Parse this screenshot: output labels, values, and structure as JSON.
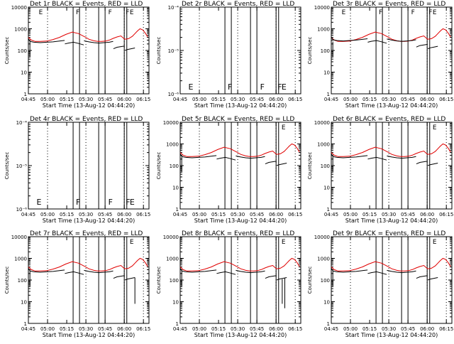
{
  "figure": {
    "rows": 3,
    "cols": 3,
    "colors": {
      "events": "#000000",
      "lld": "#e00000",
      "background": "#ffffff",
      "axis": "#000000"
    }
  },
  "chart_data": [
    {
      "type": "line",
      "title": "Det 1r BLACK = Events, RED = LLD",
      "xlabel": "Start Time (13-Aug-12 04:44:20)",
      "ylabel": "Counts/sec",
      "scale": "log",
      "ylim": [
        1,
        10000
      ],
      "yticks": [
        {
          "v": 1,
          "label": "1"
        },
        {
          "v": 10,
          "label": "10"
        },
        {
          "v": 100,
          "label": "100"
        },
        {
          "v": 1000,
          "label": "1000"
        },
        {
          "v": 10000,
          "label": "10000"
        }
      ],
      "xticks": [
        "04:45",
        "05:00",
        "05:15",
        "05:30",
        "05:45",
        "06:00",
        "06:15"
      ],
      "flags": [
        {
          "t": 8.2,
          "label": "E"
        },
        {
          "t": 37.3,
          "label": "F"
        },
        {
          "t": 62.6,
          "label": "F"
        },
        {
          "t": 76.3,
          "label": "F"
        },
        {
          "t": 79.4,
          "label": "E"
        }
      ],
      "hasData": true,
      "variant": "a"
    },
    {
      "type": "line",
      "title": "Det 2r BLACK = Events, RED = LLD",
      "xlabel": "Start Time (13-Aug-12 04:44:20)",
      "ylabel": "Counts/sec",
      "scale": "log",
      "ylim": [
        1e-06,
        0.0001
      ],
      "yticks": [
        {
          "v": 1e-06,
          "label": "10⁻⁶"
        },
        {
          "v": 1e-05,
          "label": "10⁻⁵"
        },
        {
          "v": 0.0001,
          "label": "10⁻⁴"
        }
      ],
      "xticks": [
        "04:45",
        "05:00",
        "05:15",
        "05:30",
        "05:45",
        "06:00",
        "06:15"
      ],
      "flags": [
        {
          "t": 6.5,
          "label": "E"
        },
        {
          "t": 37.3,
          "label": "F"
        },
        {
          "t": 62.6,
          "label": "F"
        },
        {
          "t": 76.3,
          "label": "F"
        },
        {
          "t": 79.4,
          "label": "E"
        }
      ],
      "hasData": false,
      "variant": "a"
    },
    {
      "type": "line",
      "title": "Det 3r BLACK = Events, RED = LLD",
      "xlabel": "Start Time (13-Aug-12 04:44:20)",
      "ylabel": "Counts/sec",
      "scale": "log",
      "ylim": [
        1,
        10000
      ],
      "yticks": [
        {
          "v": 1,
          "label": "1"
        },
        {
          "v": 10,
          "label": "10"
        },
        {
          "v": 100,
          "label": "100"
        },
        {
          "v": 1000,
          "label": "1000"
        },
        {
          "v": 10000,
          "label": "10000"
        }
      ],
      "xticks": [
        "04:45",
        "05:00",
        "05:15",
        "05:30",
        "05:45",
        "06:00",
        "06:15"
      ],
      "flags": [
        {
          "t": 8.2,
          "label": "E"
        },
        {
          "t": 37.3,
          "label": "F"
        },
        {
          "t": 62.6,
          "label": "F"
        },
        {
          "t": 76.3,
          "label": "F"
        },
        {
          "t": 79.4,
          "label": "E"
        }
      ],
      "hasData": true,
      "variant": "b"
    },
    {
      "type": "line",
      "title": "Det 4r BLACK = Events, RED = LLD",
      "xlabel": "Start Time (13-Aug-12 04:44:20)",
      "ylabel": "Counts/sec",
      "scale": "log",
      "ylim": [
        1e-06,
        0.0001
      ],
      "yticks": [
        {
          "v": 1e-06,
          "label": "10⁻⁶"
        },
        {
          "v": 1e-05,
          "label": "10⁻⁵"
        },
        {
          "v": 0.0001,
          "label": "10⁻⁴"
        }
      ],
      "xticks": [
        "04:45",
        "05:00",
        "05:15",
        "05:30",
        "05:45",
        "06:00",
        "06:15"
      ],
      "flags": [
        {
          "t": 6.5,
          "label": "E"
        },
        {
          "t": 37.3,
          "label": "F"
        },
        {
          "t": 62.6,
          "label": "F"
        },
        {
          "t": 76.3,
          "label": "F"
        },
        {
          "t": 79.4,
          "label": "E"
        }
      ],
      "hasData": false,
      "variant": "a"
    },
    {
      "type": "line",
      "title": "Det 5r BLACK = Events, RED = LLD",
      "xlabel": "Start Time (13-Aug-12 04:44:20)",
      "ylabel": "Counts/sec",
      "scale": "log",
      "ylim": [
        1,
        10000
      ],
      "yticks": [
        {
          "v": 1,
          "label": "1"
        },
        {
          "v": 10,
          "label": "10"
        },
        {
          "v": 100,
          "label": "100"
        },
        {
          "v": 1000,
          "label": "1000"
        },
        {
          "v": 10000,
          "label": "10000"
        }
      ],
      "xticks": [
        "04:45",
        "05:00",
        "05:15",
        "05:30",
        "05:45",
        "06:00",
        "06:15"
      ],
      "flags": [
        {
          "t": 79.4,
          "label": "E"
        }
      ],
      "hasData": true,
      "variant": "a"
    },
    {
      "type": "line",
      "title": "Det 6r BLACK = Events, RED = LLD",
      "xlabel": "Start Time (13-Aug-12 04:44:20)",
      "ylabel": "Counts/sec",
      "scale": "log",
      "ylim": [
        1,
        10000
      ],
      "yticks": [
        {
          "v": 1,
          "label": "1"
        },
        {
          "v": 10,
          "label": "10"
        },
        {
          "v": 100,
          "label": "100"
        },
        {
          "v": 1000,
          "label": "1000"
        },
        {
          "v": 10000,
          "label": "10000"
        }
      ],
      "xticks": [
        "04:45",
        "05:00",
        "05:15",
        "05:30",
        "05:45",
        "06:00",
        "06:15"
      ],
      "flags": [
        {
          "t": 79.4,
          "label": "E"
        }
      ],
      "hasData": true,
      "variant": "a"
    },
    {
      "type": "line",
      "title": "Det 7r BLACK = Events, RED = LLD",
      "xlabel": "Start Time (13-Aug-12 04:44:20)",
      "ylabel": "Counts/sec",
      "scale": "log",
      "ylim": [
        1,
        10000
      ],
      "yticks": [
        {
          "v": 1,
          "label": "1"
        },
        {
          "v": 10,
          "label": "10"
        },
        {
          "v": 100,
          "label": "100"
        },
        {
          "v": 1000,
          "label": "1000"
        },
        {
          "v": 10000,
          "label": "10000"
        }
      ],
      "xticks": [
        "04:45",
        "05:00",
        "05:15",
        "05:30",
        "05:45",
        "06:00",
        "06:15"
      ],
      "flags": [
        {
          "t": 79.4,
          "label": "E"
        }
      ],
      "hasData": true,
      "variant": "c"
    },
    {
      "type": "line",
      "title": "Det 8r BLACK = Events, RED = LLD",
      "xlabel": "Start Time (13-Aug-12 04:44:20)",
      "ylabel": "Counts/sec",
      "scale": "log",
      "ylim": [
        1,
        10000
      ],
      "yticks": [
        {
          "v": 1,
          "label": "1"
        },
        {
          "v": 10,
          "label": "10"
        },
        {
          "v": 100,
          "label": "100"
        },
        {
          "v": 1000,
          "label": "1000"
        },
        {
          "v": 10000,
          "label": "10000"
        }
      ],
      "xticks": [
        "04:45",
        "05:00",
        "05:15",
        "05:30",
        "05:45",
        "06:00",
        "06:15"
      ],
      "flags": [
        {
          "t": 79.4,
          "label": "E"
        }
      ],
      "hasData": true,
      "variant": "d"
    },
    {
      "type": "line",
      "title": "Det 9r BLACK = Events, RED = LLD",
      "xlabel": "Start Time (13-Aug-12 04:44:20)",
      "ylabel": "Counts/sec",
      "scale": "log",
      "ylim": [
        1,
        10000
      ],
      "yticks": [
        {
          "v": 1,
          "label": "1"
        },
        {
          "v": 10,
          "label": "10"
        },
        {
          "v": 100,
          "label": "100"
        },
        {
          "v": 1000,
          "label": "1000"
        },
        {
          "v": 10000,
          "label": "10000"
        }
      ],
      "xticks": [
        "04:45",
        "05:00",
        "05:15",
        "05:30",
        "05:45",
        "06:00",
        "06:15"
      ],
      "flags": [
        {
          "t": 79.4,
          "label": "E"
        }
      ],
      "hasData": true,
      "variant": "a"
    }
  ],
  "shared": {
    "x_range_min": [
      0.67,
      95.0
    ],
    "dotted_lines_min": [
      15.67,
      45.67,
      75.67,
      90.67
    ],
    "solid_lines_min": [
      35.67,
      40.67,
      55.67,
      60.67,
      75.67,
      77.67
    ],
    "lld_series": {
      "name": "RED = LLD",
      "t": [
        0.67,
        3,
        6,
        10,
        15,
        20,
        25,
        30,
        35,
        40,
        45,
        48,
        52,
        55,
        58,
        61,
        64,
        67,
        70,
        73,
        76,
        79,
        82,
        84,
        86,
        88,
        90,
        92,
        94
      ],
      "y": [
        400,
        300,
        260,
        260,
        270,
        320,
        400,
        550,
        700,
        600,
        420,
        330,
        280,
        260,
        260,
        270,
        300,
        360,
        420,
        470,
        330,
        350,
        450,
        600,
        800,
        1000,
        900,
        650,
        420
      ]
    },
    "events_series": {
      "name": "BLACK = Events",
      "segments": [
        {
          "t": [
            0.67,
            2,
            5,
            10,
            15,
            20,
            25,
            29
          ],
          "y": [
            350,
            260,
            240,
            230,
            240,
            250,
            270,
            290
          ]
        },
        {
          "t": [
            29.2,
            32,
            36,
            40,
            44
          ],
          "y": [
            200,
            220,
            240,
            210,
            180
          ]
        },
        {
          "t": [
            44.2,
            48,
            52,
            56,
            60,
            64,
            67
          ],
          "y": [
            280,
            250,
            230,
            220,
            230,
            240,
            260
          ]
        },
        {
          "t": [
            67.2,
            70,
            73,
            76
          ],
          "y": [
            120,
            140,
            150,
            160
          ]
        },
        {
          "t": [
            76.2,
            78,
            81,
            84
          ],
          "y": [
            100,
            110,
            120,
            130
          ]
        }
      ]
    }
  }
}
